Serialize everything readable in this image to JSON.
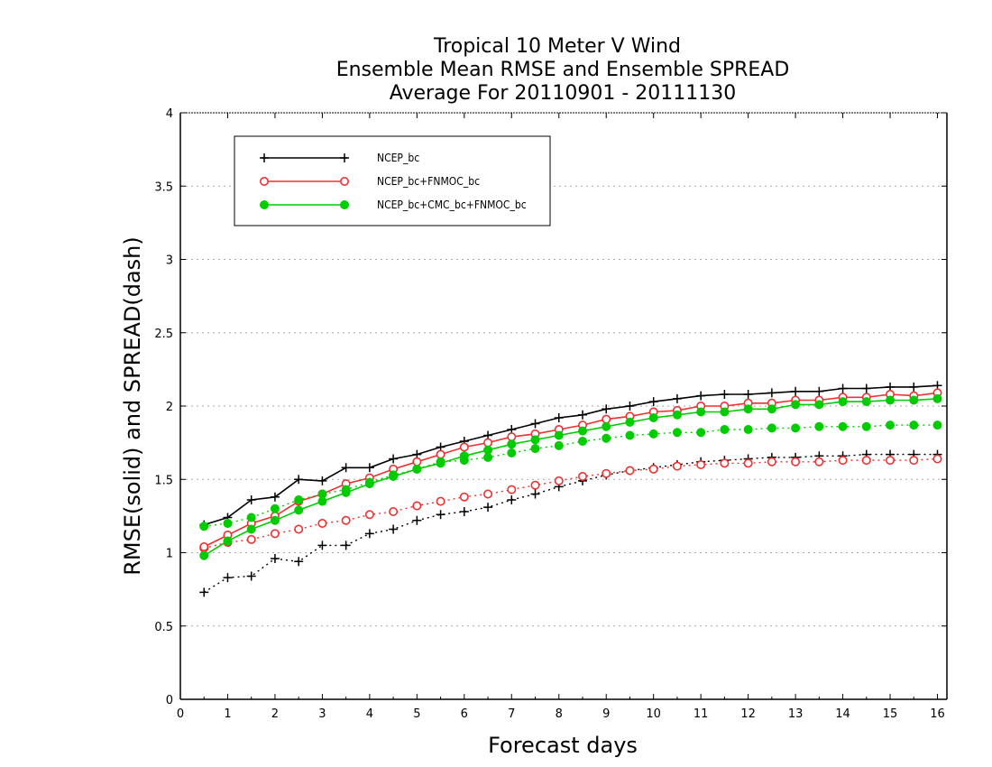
{
  "chart_data": {
    "type": "line",
    "title": [
      "Tropical 10 Meter V Wind",
      "Ensemble Mean RMSE and Ensemble SPREAD",
      "Average For 20110901 - 20111130"
    ],
    "xlabel": "Forecast days",
    "ylabel": "RMSE(solid) and SPREAD(dash)",
    "xlim": [
      0,
      16.2
    ],
    "ylim": [
      0,
      4
    ],
    "xticks": [
      "0",
      "1",
      "2",
      "3",
      "4",
      "5",
      "6",
      "7",
      "8",
      "9",
      "10",
      "11",
      "12",
      "13",
      "14",
      "15",
      "16"
    ],
    "yticks": [
      "0",
      "0.5",
      "1",
      "1.5",
      "2",
      "2.5",
      "3",
      "3.5",
      "4"
    ],
    "grid": true,
    "legend_position": "top-left",
    "x": [
      0.5,
      1,
      1.5,
      2,
      2.5,
      3,
      3.5,
      4,
      4.5,
      5,
      5.5,
      6,
      6.5,
      7,
      7.5,
      8,
      8.5,
      9,
      9.5,
      10,
      10.5,
      11,
      11.5,
      12,
      12.5,
      13,
      13.5,
      14,
      14.5,
      15,
      15.5,
      16
    ],
    "series": [
      {
        "name": "NCEP_bc",
        "color": "#000000",
        "marker": "plus",
        "rmse": [
          1.19,
          1.24,
          1.36,
          1.38,
          1.5,
          1.49,
          1.58,
          1.58,
          1.64,
          1.67,
          1.72,
          1.76,
          1.8,
          1.84,
          1.88,
          1.92,
          1.94,
          1.98,
          2.0,
          2.03,
          2.05,
          2.07,
          2.08,
          2.08,
          2.09,
          2.1,
          2.1,
          2.12,
          2.12,
          2.13,
          2.13,
          2.14
        ],
        "spread": [
          0.73,
          0.83,
          0.84,
          0.96,
          0.94,
          1.05,
          1.05,
          1.13,
          1.16,
          1.22,
          1.26,
          1.28,
          1.31,
          1.36,
          1.4,
          1.45,
          1.49,
          1.53,
          1.56,
          1.58,
          1.6,
          1.62,
          1.63,
          1.64,
          1.65,
          1.65,
          1.66,
          1.66,
          1.67,
          1.67,
          1.67,
          1.67
        ]
      },
      {
        "name": "NCEP_bc+FNMOC_bc",
        "color": "#ee3030",
        "marker": "open-circle",
        "rmse": [
          1.04,
          1.12,
          1.2,
          1.25,
          1.35,
          1.4,
          1.47,
          1.51,
          1.57,
          1.62,
          1.67,
          1.72,
          1.75,
          1.79,
          1.81,
          1.84,
          1.87,
          1.91,
          1.93,
          1.96,
          1.97,
          2.0,
          2.0,
          2.02,
          2.02,
          2.04,
          2.04,
          2.06,
          2.06,
          2.08,
          2.07,
          2.09
        ],
        "spread": [
          1.03,
          1.07,
          1.09,
          1.13,
          1.16,
          1.2,
          1.22,
          1.26,
          1.28,
          1.32,
          1.35,
          1.38,
          1.4,
          1.43,
          1.46,
          1.49,
          1.52,
          1.54,
          1.56,
          1.57,
          1.59,
          1.6,
          1.61,
          1.61,
          1.62,
          1.62,
          1.62,
          1.63,
          1.63,
          1.63,
          1.63,
          1.64
        ]
      },
      {
        "name": "NCEP_bc+CMC_bc+FNMOC_bc",
        "color": "#00cc00",
        "marker": "filled-circle",
        "rmse": [
          0.98,
          1.08,
          1.16,
          1.22,
          1.29,
          1.35,
          1.41,
          1.47,
          1.52,
          1.57,
          1.61,
          1.66,
          1.7,
          1.74,
          1.77,
          1.8,
          1.83,
          1.86,
          1.89,
          1.92,
          1.94,
          1.96,
          1.96,
          1.98,
          1.98,
          2.01,
          2.01,
          2.03,
          2.03,
          2.04,
          2.04,
          2.05
        ],
        "spread": [
          1.18,
          1.2,
          1.24,
          1.3,
          1.36,
          1.4,
          1.43,
          1.48,
          1.53,
          1.57,
          1.62,
          1.63,
          1.65,
          1.68,
          1.71,
          1.73,
          1.76,
          1.78,
          1.8,
          1.81,
          1.82,
          1.82,
          1.84,
          1.84,
          1.85,
          1.85,
          1.86,
          1.86,
          1.86,
          1.87,
          1.87,
          1.87
        ]
      }
    ]
  }
}
